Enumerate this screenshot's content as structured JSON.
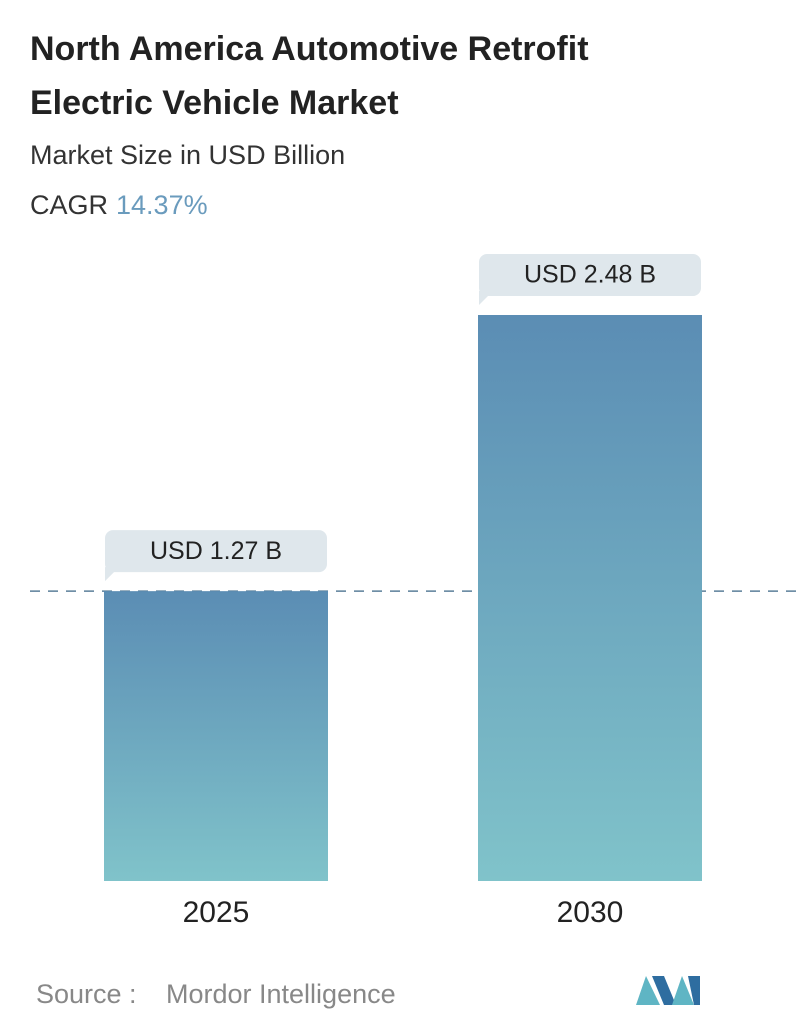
{
  "chart_data": {
    "type": "bar",
    "title": "North America Automotive Retrofit Electric Vehicle Market",
    "subtitle": "Market Size in USD Billion",
    "cagr_label": "CAGR",
    "cagr_value": "14.37%",
    "categories": [
      "2025",
      "2030"
    ],
    "values": [
      1.27,
      2.48
    ],
    "value_labels": [
      "USD 1.27 B",
      "USD 2.48 B"
    ],
    "gradient": [
      "#5b8db4",
      "#80c3ca"
    ],
    "reference_line": true,
    "source_label": "Source :",
    "source": "Mordor Intelligence"
  }
}
